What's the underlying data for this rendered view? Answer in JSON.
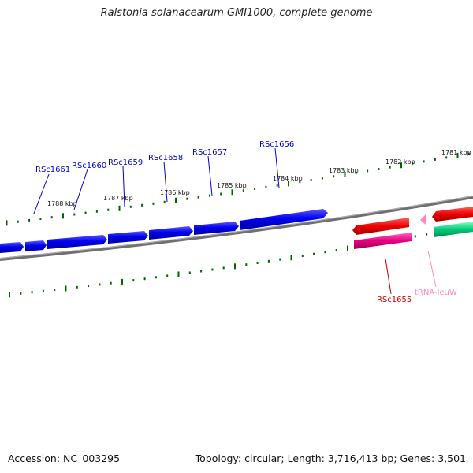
{
  "title": "Ralstonia solanacearum GMI1000, complete genome",
  "footer": {
    "accession": "Accession: NC_003295",
    "topology": "Topology: circular; Length: 3,716,413 bp; Genes: 3,501"
  },
  "colors": {
    "forward_cds": "#0000ee",
    "reverse_cds": "#ee0000",
    "reverse_cds_lower": "#e6007e",
    "trna": "#ff88bb",
    "other_feature": "#00cc77",
    "ticks": "#006600",
    "backbone": "#808080"
  },
  "scale": {
    "ticks": [
      {
        "label": "1788 kbp"
      },
      {
        "label": "1787 kbp"
      },
      {
        "label": "1786 kbp"
      },
      {
        "label": "1785 kbp"
      },
      {
        "label": "1784 kbp"
      },
      {
        "label": "1783 kbp"
      },
      {
        "label": "1782 kbp"
      },
      {
        "label": "1781 kbp"
      }
    ]
  },
  "genes": {
    "forward": [
      {
        "label": "RSc1661"
      },
      {
        "label": "RSc1660"
      },
      {
        "label": "RSc1659"
      },
      {
        "label": "RSc1658"
      },
      {
        "label": "RSc1657"
      },
      {
        "label": "RSc1656"
      }
    ],
    "reverse": [
      {
        "label": "RSc1655"
      },
      {
        "label": "tRNA-leuW"
      }
    ]
  }
}
